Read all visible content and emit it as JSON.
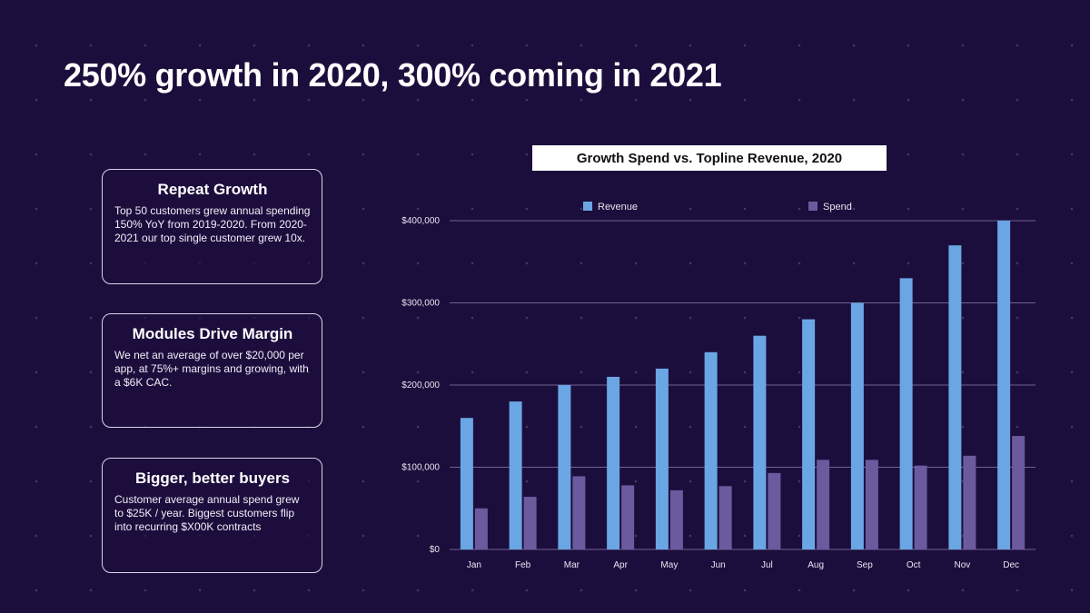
{
  "headline": "250% growth in 2020, 300% coming in 2021",
  "cards": [
    {
      "title": "Repeat Growth",
      "body": "Top 50 customers grew annual spending 150% YoY from 2019-2020. From 2020-2021 our top single customer grew 10x."
    },
    {
      "title": "Modules Drive Margin",
      "body": "We net an average of over $20,000 per app, at 75%+ margins and growing, with a $6K CAC."
    },
    {
      "title": "Bigger, better buyers",
      "body": "Customer average annual spend grew to $25K / year. Biggest customers flip into recurring $X00K contracts"
    }
  ],
  "colors": {
    "background": "#1c0e3c",
    "revenue": "#6aa6e4",
    "spend": "#6b5a9e",
    "grid": "#6e6290"
  },
  "chart_data": {
    "type": "bar",
    "title": "Growth Spend vs. Topline Revenue, 2020",
    "categories": [
      "Jan",
      "Feb",
      "Mar",
      "Apr",
      "May",
      "Jun",
      "Jul",
      "Aug",
      "Sep",
      "Oct",
      "Nov",
      "Dec"
    ],
    "series": [
      {
        "name": "Revenue",
        "values": [
          160000,
          180000,
          200000,
          210000,
          220000,
          240000,
          260000,
          280000,
          300000,
          330000,
          370000,
          400000
        ]
      },
      {
        "name": "Spend",
        "values": [
          50000,
          64000,
          89000,
          78000,
          72000,
          77000,
          93000,
          109000,
          109000,
          102000,
          114000,
          138000
        ]
      }
    ],
    "ylim": [
      0,
      400000
    ],
    "yticks": [
      0,
      100000,
      200000,
      300000,
      400000
    ],
    "ytick_labels": [
      "$0",
      "$100,000",
      "$200,000",
      "$300,000",
      "$400,000"
    ],
    "legend_position": "top",
    "grid": true
  }
}
